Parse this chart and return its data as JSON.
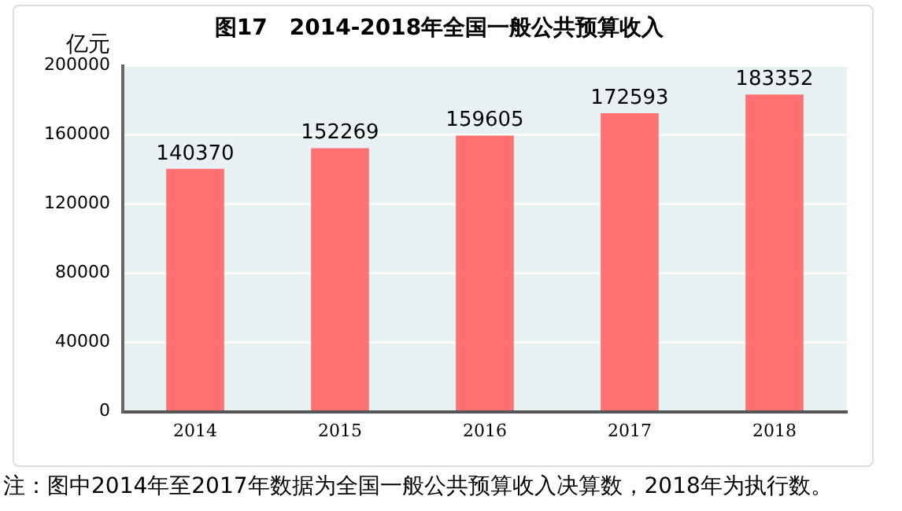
{
  "chart_data": {
    "type": "bar",
    "title": "图17　2014-2018年全国一般公共预算收入",
    "ylabel": "亿元",
    "categories": [
      "2014",
      "2015",
      "2016",
      "2017",
      "2018"
    ],
    "values": [
      140370,
      152269,
      159605,
      172593,
      183352
    ],
    "color": "#ff7070",
    "ylim": [
      0,
      200000
    ],
    "yticks": [
      0,
      40000,
      80000,
      120000,
      160000,
      200000
    ],
    "grid": "y",
    "data_labels": true,
    "annotations": [
      "注：图中2014年至2017年数据为全国一般公共预算收入决算数，2018年为执行数。"
    ]
  }
}
